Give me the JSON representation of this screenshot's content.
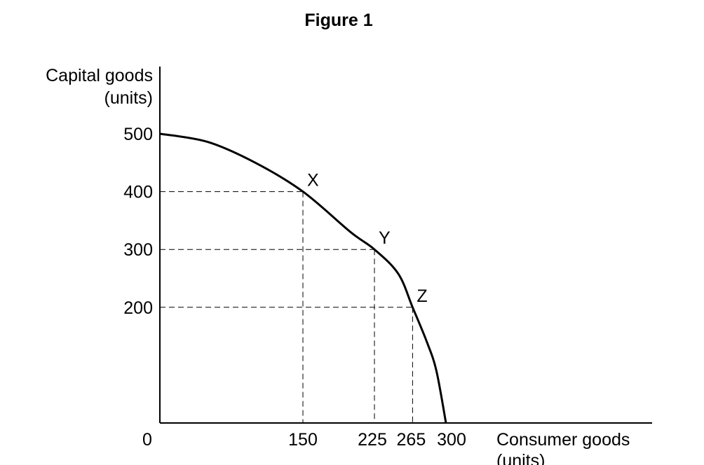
{
  "figure_title": "Figure 1",
  "chart_data": {
    "type": "line",
    "title": "",
    "ylabel_lines": [
      "Capital goods",
      "(units)"
    ],
    "xlabel_lines": [
      "Consumer goods",
      "(units)"
    ],
    "origin_label": "0",
    "xlim": [
      0,
      300
    ],
    "ylim": [
      0,
      500
    ],
    "x_ticks": [
      150,
      225,
      265,
      300
    ],
    "y_ticks": [
      200,
      300,
      400,
      500
    ],
    "grid": false,
    "series": [
      {
        "x": [
          0,
          50,
          100,
          150,
          200,
          225,
          250,
          265,
          280,
          290,
          300
        ],
        "y": [
          500,
          486,
          450,
          400,
          330,
          300,
          258,
          200,
          140,
          90,
          0
        ]
      }
    ],
    "points": [
      {
        "label": "X",
        "x": 150,
        "y": 400
      },
      {
        "label": "Y",
        "x": 225,
        "y": 300
      },
      {
        "label": "Z",
        "x": 265,
        "y": 200
      }
    ]
  }
}
